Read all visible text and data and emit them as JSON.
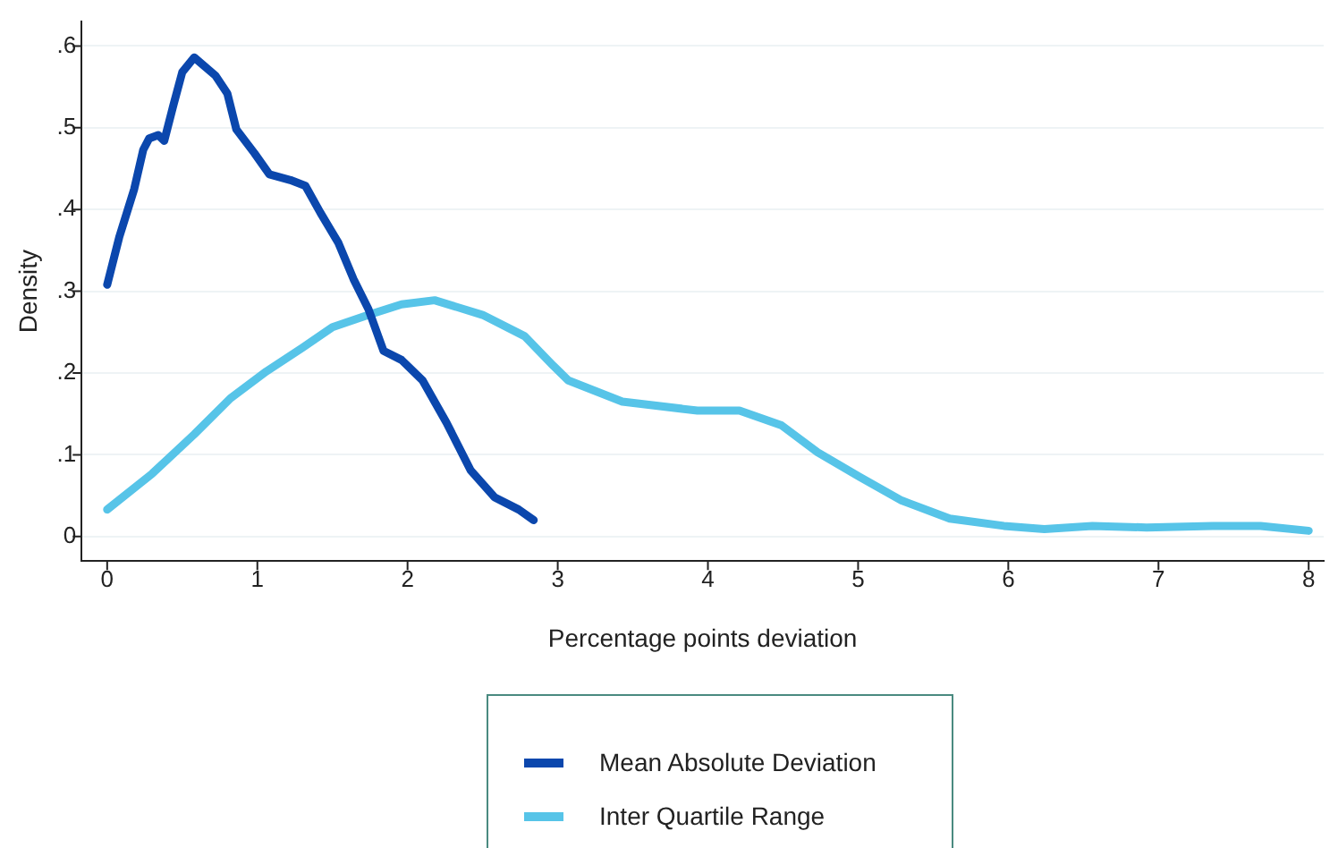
{
  "chart_data": {
    "type": "line",
    "xlabel": "Percentage points deviation",
    "ylabel": "Density",
    "xlim": [
      -0.17,
      8.1
    ],
    "xticks": [
      0,
      1,
      2,
      3,
      4,
      5,
      6,
      7,
      8
    ],
    "ylim": [
      -0.03,
      0.63
    ],
    "yticks": [
      0,
      {
        "value": 0.1,
        "label": ".1"
      },
      {
        "value": 0.2,
        "label": ".2"
      },
      {
        "value": 0.3,
        "label": ".3"
      },
      {
        "value": 0.4,
        "label": ".4"
      },
      {
        "value": 0.5,
        "label": ".5"
      },
      {
        "value": 0.6,
        "label": ".6"
      }
    ],
    "grid": "y",
    "legend": "bottom",
    "marker": "none",
    "line_style": "solid",
    "series": [
      {
        "name": "Mean Absolute Deviation",
        "color": "#0b47ad",
        "x": [
          0,
          0.08,
          0.18,
          0.24,
          0.28,
          0.34,
          0.38,
          0.44,
          0.5,
          0.58,
          0.72,
          0.8,
          0.86,
          0.98,
          1.08,
          1.22,
          1.32,
          1.42,
          1.54,
          1.64,
          1.74,
          1.84,
          1.96,
          2.1,
          2.26,
          2.42,
          2.58,
          2.74,
          2.84
        ],
        "values": [
          0.308,
          0.366,
          0.425,
          0.473,
          0.487,
          0.491,
          0.484,
          0.527,
          0.568,
          0.586,
          0.564,
          0.542,
          0.498,
          0.469,
          0.443,
          0.436,
          0.429,
          0.396,
          0.359,
          0.315,
          0.278,
          0.227,
          0.216,
          0.191,
          0.139,
          0.081,
          0.048,
          0.033,
          0.02
        ]
      },
      {
        "name": "Inter Quartile Range",
        "color": "#57c4e8",
        "x": [
          0,
          0.3,
          0.58,
          0.82,
          1.06,
          1.3,
          1.5,
          1.74,
          1.96,
          2.18,
          2.5,
          2.78,
          2.97,
          3.07,
          3.43,
          3.93,
          4.21,
          4.49,
          4.73,
          5.01,
          5.29,
          5.61,
          5.97,
          6.24,
          6.56,
          6.92,
          7.36,
          7.68,
          8.0
        ],
        "values": [
          0.033,
          0.077,
          0.125,
          0.169,
          0.202,
          0.231,
          0.256,
          0.271,
          0.284,
          0.289,
          0.271,
          0.245,
          0.209,
          0.191,
          0.165,
          0.154,
          0.154,
          0.136,
          0.103,
          0.073,
          0.044,
          0.022,
          0.013,
          0.009,
          0.013,
          0.011,
          0.013,
          0.013,
          0.007
        ]
      }
    ]
  }
}
